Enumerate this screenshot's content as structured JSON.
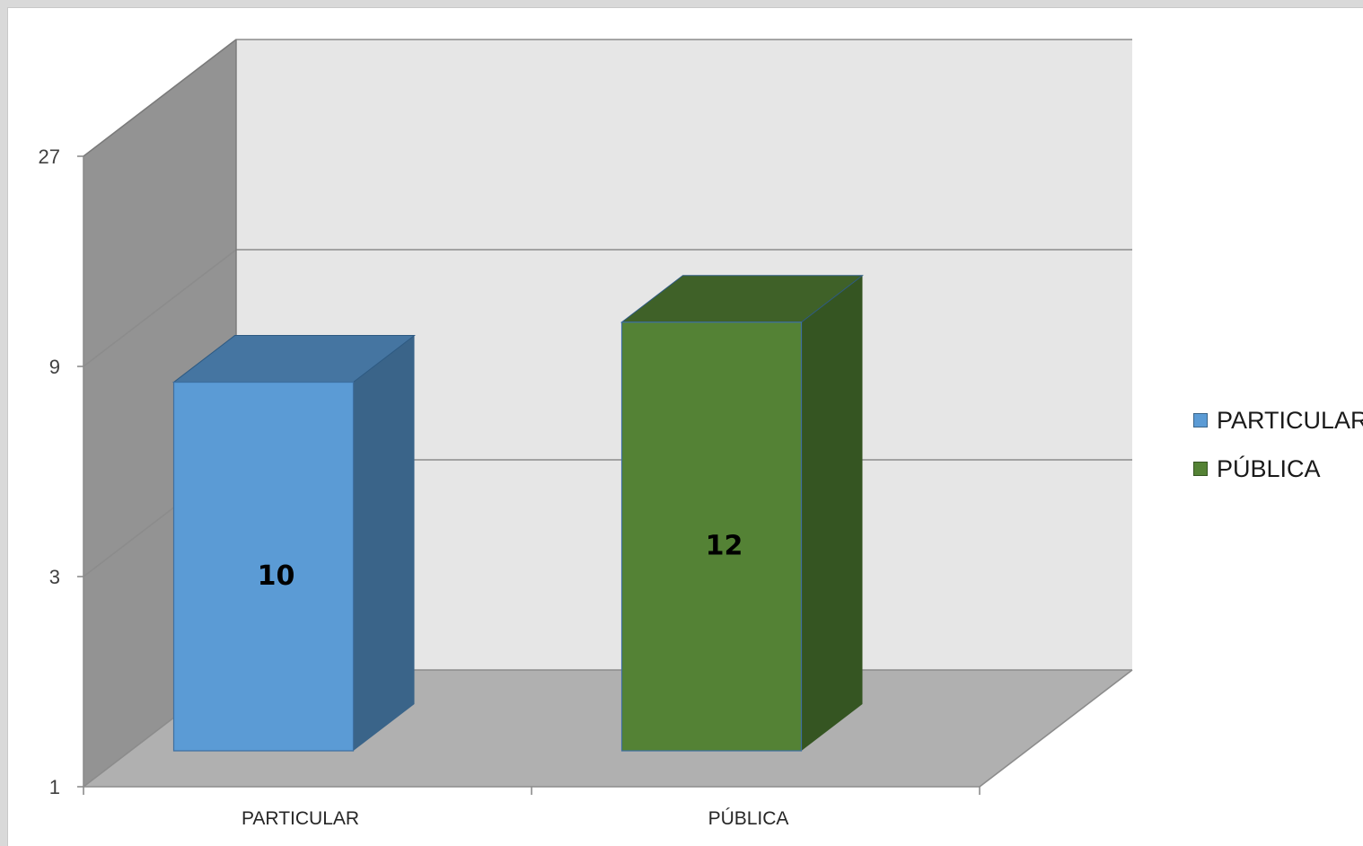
{
  "chart_data": {
    "type": "bar",
    "style": "3d-column",
    "title": "",
    "xlabel": "",
    "ylabel": "",
    "scale": "log3",
    "yticks": [
      1,
      3,
      9,
      27
    ],
    "ytick_labels": [
      "1",
      "3",
      "9",
      "27"
    ],
    "ylim": [
      1,
      27
    ],
    "categories": [
      "PARTICULAR",
      "PÚBLICA"
    ],
    "series": [
      {
        "name": "PARTICULAR",
        "values": [
          10,
          null
        ],
        "value_labels": [
          "10",
          ""
        ],
        "color": "#5b9bd5",
        "color_dark": "#3a6489",
        "color_top": "#4575a1"
      },
      {
        "name": "PÚBLICA",
        "values": [
          null,
          12
        ],
        "value_labels": [
          "",
          "12"
        ],
        "color": "#548235",
        "color_dark": "#355522",
        "color_top": "#3f6128"
      }
    ],
    "legend": "right",
    "grid": true,
    "colors": {
      "back_wall": "#e6e6e6",
      "side_wall": "#939393",
      "floor": "#b0b0b0",
      "grid": "#8c8c8c"
    }
  }
}
